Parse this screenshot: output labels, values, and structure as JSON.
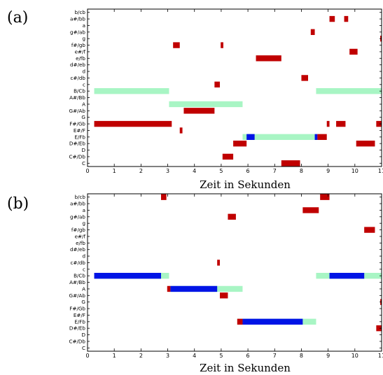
{
  "colors": {
    "red": "#c00000",
    "blue": "#0014e6",
    "green": "#a8f5c4"
  },
  "chart_data": [
    {
      "type": "heatmap",
      "panel_label": "(a)",
      "xlabel": "Zeit in Sekunden",
      "xlim": [
        0,
        11
      ],
      "xticks": [
        0,
        1,
        2,
        3,
        4,
        5,
        6,
        7,
        8,
        9,
        10,
        11
      ],
      "xtick_labels": [
        "0",
        "1",
        "2",
        "3",
        "4",
        "5",
        "6",
        "7",
        "8",
        "9",
        "10",
        "11"
      ],
      "yticks": [
        "C",
        "C#/Db",
        "D",
        "D#/Eb",
        "E/Fb",
        "E#/F",
        "F#/Gb",
        "G",
        "G#/Ab",
        "A",
        "A#/Bb",
        "B/Cb",
        "c",
        "c#/db",
        "d",
        "d#/eb",
        "e/fb",
        "e#/f",
        "f#/gb",
        "g",
        "g#/ab",
        "a",
        "a#/bb",
        "b/cb"
      ],
      "segments": [
        {
          "row": "B/Cb",
          "start": 0.25,
          "end": 3.05,
          "color": "green"
        },
        {
          "row": "B/Cb",
          "start": 8.55,
          "end": 11.0,
          "color": "green"
        },
        {
          "row": "A",
          "start": 3.05,
          "end": 5.8,
          "color": "green"
        },
        {
          "row": "E/Fb",
          "start": 5.8,
          "end": 8.5,
          "color": "green"
        },
        {
          "row": "E/Fb",
          "start": 5.95,
          "end": 6.25,
          "color": "blue"
        },
        {
          "row": "E/Fb",
          "start": 8.5,
          "end": 8.6,
          "color": "blue"
        },
        {
          "row": "E/Fb",
          "start": 8.6,
          "end": 8.95,
          "color": "red"
        },
        {
          "row": "a#/bb",
          "start": 9.05,
          "end": 9.25,
          "color": "red"
        },
        {
          "row": "a#/bb",
          "start": 9.6,
          "end": 9.75,
          "color": "red"
        },
        {
          "row": "g#/ab",
          "start": 8.35,
          "end": 8.5,
          "color": "red"
        },
        {
          "row": "g",
          "start": 10.95,
          "end": 11.0,
          "color": "red"
        },
        {
          "row": "f#/gb",
          "start": 3.2,
          "end": 3.45,
          "color": "red"
        },
        {
          "row": "f#/gb",
          "start": 4.98,
          "end": 5.08,
          "color": "red"
        },
        {
          "row": "e#/f",
          "start": 9.8,
          "end": 10.1,
          "color": "red"
        },
        {
          "row": "e/fb",
          "start": 6.3,
          "end": 7.25,
          "color": "red"
        },
        {
          "row": "c#/db",
          "start": 8.0,
          "end": 8.25,
          "color": "red"
        },
        {
          "row": "c",
          "start": 4.75,
          "end": 4.95,
          "color": "red"
        },
        {
          "row": "G#/Ab",
          "start": 3.6,
          "end": 4.75,
          "color": "red"
        },
        {
          "row": "F#/Gb",
          "start": 0.25,
          "end": 3.15,
          "color": "red"
        },
        {
          "row": "F#/Gb",
          "start": 8.95,
          "end": 9.05,
          "color": "red"
        },
        {
          "row": "F#/Gb",
          "start": 9.3,
          "end": 9.65,
          "color": "red"
        },
        {
          "row": "F#/Gb",
          "start": 10.8,
          "end": 11.0,
          "color": "red"
        },
        {
          "row": "E#/F",
          "start": 3.45,
          "end": 3.55,
          "color": "red"
        },
        {
          "row": "D#/Eb",
          "start": 5.45,
          "end": 5.95,
          "color": "red"
        },
        {
          "row": "D#/Eb",
          "start": 10.05,
          "end": 10.75,
          "color": "red"
        },
        {
          "row": "C#/Db",
          "start": 5.05,
          "end": 5.45,
          "color": "red"
        },
        {
          "row": "C",
          "start": 7.25,
          "end": 7.95,
          "color": "red"
        }
      ]
    },
    {
      "type": "heatmap",
      "panel_label": "(b)",
      "xlabel": "Zeit in Sekunden",
      "xlim": [
        0,
        11
      ],
      "xticks": [
        0,
        1,
        2,
        3,
        4,
        5,
        6,
        7,
        8,
        9,
        10,
        11
      ],
      "xtick_labels": [
        "0",
        "1",
        "2",
        "3",
        "4",
        "5",
        "6",
        "7",
        "8",
        "9",
        "10",
        "11"
      ],
      "yticks": [
        "C",
        "C#/Db",
        "D",
        "D#/Eb",
        "E/Fb",
        "E#/F",
        "F#/Gb",
        "G",
        "G#/Ab",
        "A",
        "A#/Bb",
        "B/Cb",
        "c",
        "c#/db",
        "d",
        "d#/eb",
        "e/fb",
        "e#/f",
        "f#/gb",
        "g",
        "g#/ab",
        "a",
        "a#/bb",
        "b/cb"
      ],
      "segments": [
        {
          "row": "B/Cb",
          "start": 0.25,
          "end": 3.05,
          "color": "green"
        },
        {
          "row": "B/Cb",
          "start": 8.55,
          "end": 11.0,
          "color": "green"
        },
        {
          "row": "A",
          "start": 3.05,
          "end": 5.8,
          "color": "green"
        },
        {
          "row": "E/Fb",
          "start": 5.6,
          "end": 8.55,
          "color": "green"
        },
        {
          "row": "B/Cb",
          "start": 0.25,
          "end": 2.75,
          "color": "blue"
        },
        {
          "row": "B/Cb",
          "start": 9.05,
          "end": 10.35,
          "color": "blue"
        },
        {
          "row": "A",
          "start": 3.1,
          "end": 4.85,
          "color": "blue"
        },
        {
          "row": "E/Fb",
          "start": 5.8,
          "end": 8.05,
          "color": "blue"
        },
        {
          "row": "A",
          "start": 2.98,
          "end": 3.1,
          "color": "red"
        },
        {
          "row": "E/Fb",
          "start": 5.6,
          "end": 5.8,
          "color": "red"
        },
        {
          "row": "b/cb",
          "start": 2.75,
          "end": 2.95,
          "color": "red"
        },
        {
          "row": "b/cb",
          "start": 8.7,
          "end": 9.05,
          "color": "red"
        },
        {
          "row": "a",
          "start": 8.05,
          "end": 8.65,
          "color": "red"
        },
        {
          "row": "g#/ab",
          "start": 5.25,
          "end": 5.55,
          "color": "red"
        },
        {
          "row": "f#/gb",
          "start": 10.35,
          "end": 10.75,
          "color": "red"
        },
        {
          "row": "c#/db",
          "start": 4.85,
          "end": 4.95,
          "color": "red"
        },
        {
          "row": "G#/Ab",
          "start": 4.95,
          "end": 5.25,
          "color": "red"
        },
        {
          "row": "G",
          "start": 10.95,
          "end": 11.0,
          "color": "red"
        },
        {
          "row": "D#/Eb",
          "start": 10.8,
          "end": 11.0,
          "color": "red"
        }
      ]
    }
  ]
}
